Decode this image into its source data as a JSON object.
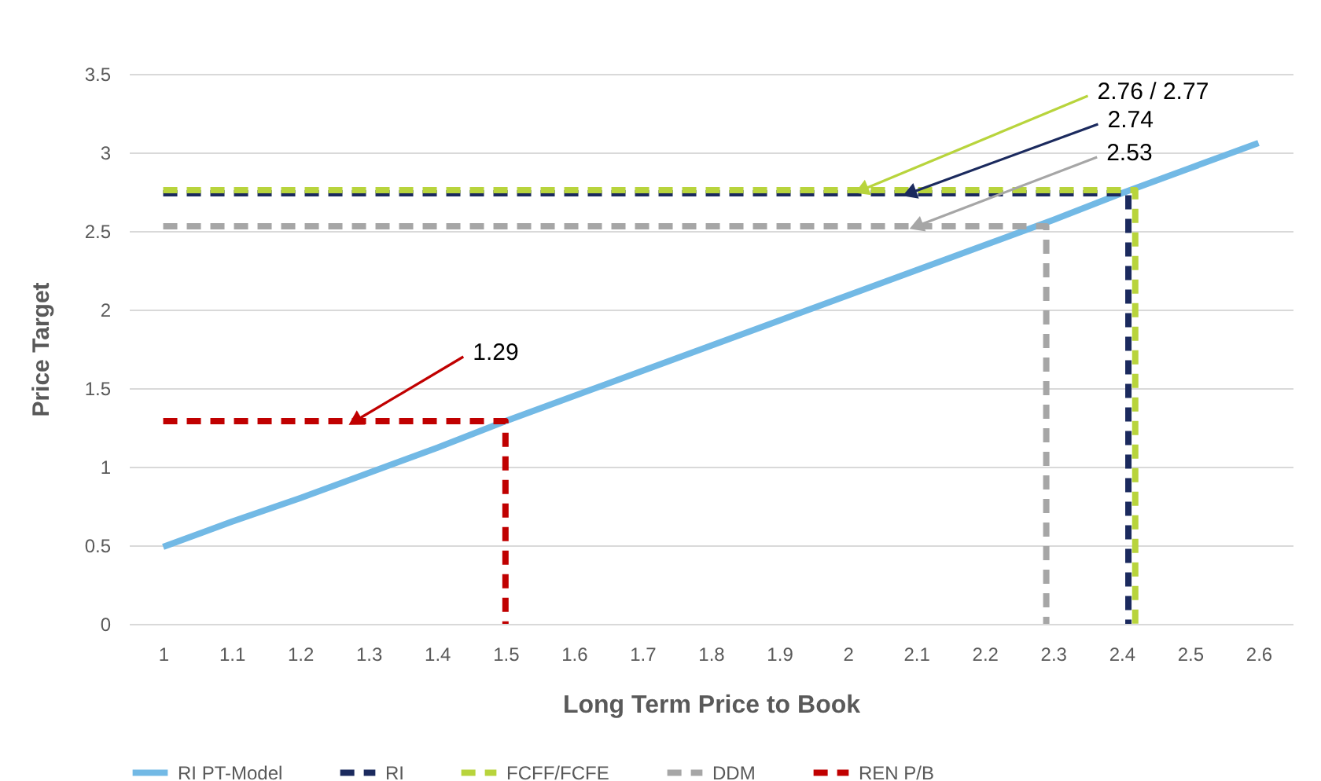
{
  "chart_data": {
    "type": "line",
    "xlabel": "Long Term Price to Book",
    "ylabel": "Price Target",
    "x": [
      1,
      1.1,
      1.2,
      1.3,
      1.4,
      1.5,
      1.6,
      1.7,
      1.8,
      1.9,
      2,
      2.1,
      2.2,
      2.3,
      2.4,
      2.5,
      2.6
    ],
    "series": [
      {
        "name": "RI PT-Model",
        "color": "#72b9e5",
        "line_style": "solid",
        "values": [
          0.49,
          0.65,
          0.8,
          0.96,
          1.12,
          1.29,
          1.45,
          1.61,
          1.77,
          1.93,
          2.09,
          2.25,
          2.41,
          2.57,
          2.74,
          2.9,
          3.06
        ]
      },
      {
        "name": "RI",
        "color": "#1b2a5e",
        "line_style": "dashed",
        "x": [
          1,
          2.41,
          2.41
        ],
        "values": [
          2.74,
          2.74,
          0
        ]
      },
      {
        "name": "FCFF/FCFE",
        "color": "#b8d43c",
        "line_style": "dashed",
        "x": [
          1,
          2.42,
          2.42
        ],
        "values": [
          2.76,
          2.76,
          0
        ]
      },
      {
        "name": "DDM",
        "color": "#a6a6a6",
        "line_style": "dashed",
        "x": [
          1,
          2.29,
          2.29
        ],
        "values": [
          2.53,
          2.53,
          0
        ]
      },
      {
        "name": "REN P/B",
        "color": "#c00000",
        "line_style": "dashed",
        "x": [
          1,
          1.5,
          1.5
        ],
        "values": [
          1.29,
          1.29,
          0
        ]
      }
    ],
    "xlim": [
      0.95,
      2.65
    ],
    "xticks": [
      1,
      1.1,
      1.2,
      1.3,
      1.4,
      1.5,
      1.6,
      1.7,
      1.8,
      1.9,
      2,
      2.1,
      2.2,
      2.3,
      2.4,
      2.5,
      2.6
    ],
    "ylim": [
      0,
      3.5
    ],
    "yticks": [
      0,
      0.5,
      1,
      1.5,
      2,
      2.5,
      3,
      3.5
    ],
    "grid": "y",
    "legend": "bottom",
    "annotations": [
      {
        "text": "2.76 / 2.77",
        "x": 2.02,
        "y": 2.76
      },
      {
        "text": "2.74",
        "x": 2.09,
        "y": 2.74
      },
      {
        "text": "2.53",
        "x": 2.1,
        "y": 2.53
      },
      {
        "text": "1.29",
        "x": 1.28,
        "y": 1.29
      }
    ]
  }
}
